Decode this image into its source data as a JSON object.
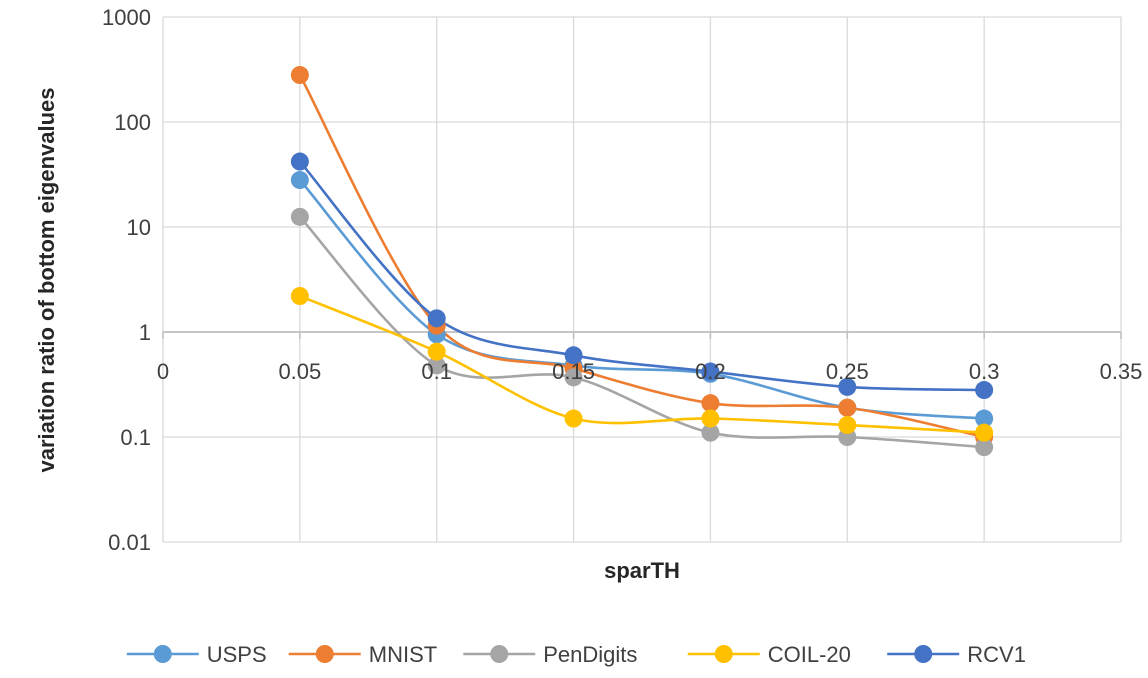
{
  "chart_data": {
    "type": "line",
    "title": "",
    "xlabel": "sparTH",
    "ylabel": "variation ratio of bottom eigenvalues",
    "xlim": [
      0,
      0.35
    ],
    "ylim": [
      0.01,
      1000
    ],
    "y_scale": "log",
    "x_ticks": [
      "0",
      "0.05",
      "0.1",
      "0.15",
      "0.2",
      "0.25",
      "0.3",
      "0.35"
    ],
    "y_ticks": [
      "0.01",
      "0.1",
      "1",
      "10",
      "100",
      "1000"
    ],
    "grid": "vertical and horizontal",
    "legend_position": "bottom",
    "x": [
      0.05,
      0.1,
      0.15,
      0.2,
      0.25,
      0.3
    ],
    "series": [
      {
        "name": "USPS",
        "color": "#5b9bd5",
        "values": [
          28,
          0.95,
          0.48,
          0.4,
          0.19,
          0.15
        ]
      },
      {
        "name": "MNIST",
        "color": "#ed7d31",
        "values": [
          280,
          1.15,
          0.45,
          0.21,
          0.19,
          0.1
        ]
      },
      {
        "name": "PenDigits",
        "color": "#a5a5a5",
        "values": [
          12.5,
          0.48,
          0.37,
          0.11,
          0.1,
          0.08
        ]
      },
      {
        "name": "COIL-20",
        "color": "#ffc000",
        "values": [
          2.2,
          0.65,
          0.15,
          0.15,
          0.13,
          0.11
        ]
      },
      {
        "name": "RCV1",
        "color": "#4472c4",
        "values": [
          42,
          1.35,
          0.6,
          0.42,
          0.3,
          0.28
        ]
      }
    ]
  }
}
